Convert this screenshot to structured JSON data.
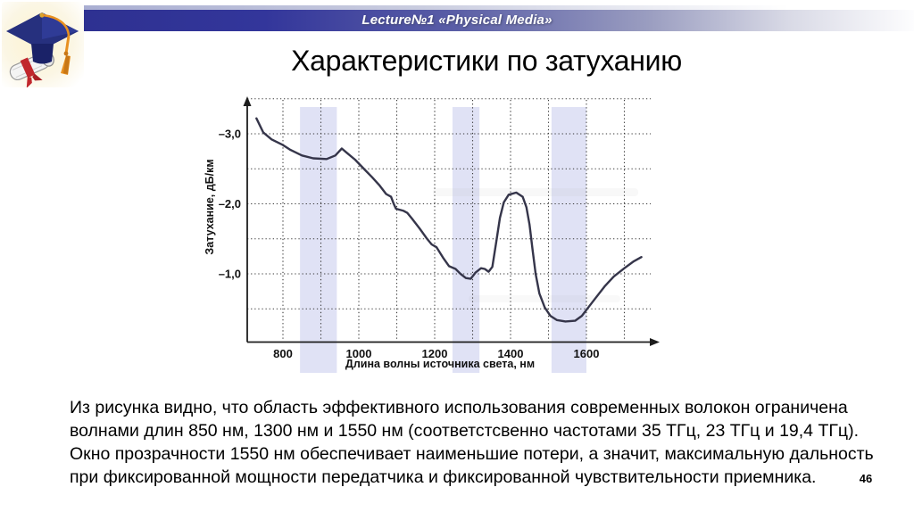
{
  "banner": {
    "title": "Lecture№1 «Physical Media»"
  },
  "slide": {
    "title": "Характеристики по затуханию",
    "page_number": "46"
  },
  "body": {
    "lines": [
      "Из рисунка видно, что область эффективного использования современных волокон ограничена",
      "волнами длин 850 нм, 1300 нм и 1550 нм (соответстсвенно частотами 35 ТГц, 23 ТГц и 19,4 ТГц).",
      "Окно прозрачности 1550 нм обеспечивает наименьшие потери, а значит, максимальную дальность",
      "при фиксированной мощности передатчика и фиксированной чувствительности приемника."
    ]
  },
  "chart_data": {
    "type": "line",
    "title": "",
    "xlabel": "Длина волны источника света, нм",
    "ylabel": "Затухание, дБ/км",
    "xlim": [
      706,
      1790
    ],
    "ylim": [
      -3.6,
      -0.2
    ],
    "grid": "dotted; vertical every 100 nm, horizontal every 0.5 dB; y axis inverted (−3 on top)",
    "legend": "none",
    "x_ticks": [
      {
        "label": "800",
        "value": 800
      },
      {
        "label": "1000",
        "value": 1000
      },
      {
        "label": "1200",
        "value": 1200
      },
      {
        "label": "1400",
        "value": 1400
      },
      {
        "label": "1600",
        "value": 1600
      }
    ],
    "y_ticks": [
      {
        "label": "–3,0",
        "value": -3.0
      },
      {
        "label": "–2,0",
        "value": -2.0
      },
      {
        "label": "–1,0",
        "value": -1.0
      }
    ],
    "x_gridlines": [
      800,
      900,
      1000,
      1100,
      1200,
      1300,
      1400,
      1500,
      1600,
      1700
    ],
    "y_gridlines": [
      -3.5,
      -3.0,
      -2.5,
      -2.0,
      -1.5,
      -1.0,
      -0.5
    ],
    "highlight_bands_nm": [
      [
        845,
        942
      ],
      [
        1247,
        1318
      ],
      [
        1508,
        1600
      ]
    ],
    "band_color": "#cdd0ef",
    "curve_color": "#35354a",
    "series": [
      {
        "name": "attenuation",
        "points": [
          [
            730,
            -3.22
          ],
          [
            748,
            -3.02
          ],
          [
            770,
            -2.92
          ],
          [
            800,
            -2.84
          ],
          [
            820,
            -2.77
          ],
          [
            850,
            -2.69
          ],
          [
            880,
            -2.65
          ],
          [
            915,
            -2.64
          ],
          [
            938,
            -2.69
          ],
          [
            955,
            -2.79
          ],
          [
            968,
            -2.73
          ],
          [
            990,
            -2.63
          ],
          [
            1015,
            -2.49
          ],
          [
            1035,
            -2.38
          ],
          [
            1055,
            -2.26
          ],
          [
            1072,
            -2.14
          ],
          [
            1085,
            -2.1
          ],
          [
            1092,
            -2.0
          ],
          [
            1098,
            -1.93
          ],
          [
            1118,
            -1.9
          ],
          [
            1128,
            -1.87
          ],
          [
            1140,
            -1.79
          ],
          [
            1160,
            -1.65
          ],
          [
            1180,
            -1.5
          ],
          [
            1192,
            -1.42
          ],
          [
            1205,
            -1.38
          ],
          [
            1222,
            -1.23
          ],
          [
            1238,
            -1.11
          ],
          [
            1255,
            -1.07
          ],
          [
            1268,
            -1.0
          ],
          [
            1282,
            -0.94
          ],
          [
            1295,
            -0.93
          ],
          [
            1308,
            -1.02
          ],
          [
            1322,
            -1.08
          ],
          [
            1332,
            -1.07
          ],
          [
            1342,
            -1.03
          ],
          [
            1352,
            -1.1
          ],
          [
            1362,
            -1.45
          ],
          [
            1372,
            -1.8
          ],
          [
            1382,
            -2.02
          ],
          [
            1395,
            -2.13
          ],
          [
            1415,
            -2.16
          ],
          [
            1432,
            -2.1
          ],
          [
            1442,
            -1.95
          ],
          [
            1450,
            -1.7
          ],
          [
            1458,
            -1.35
          ],
          [
            1466,
            -1.0
          ],
          [
            1476,
            -0.72
          ],
          [
            1490,
            -0.52
          ],
          [
            1505,
            -0.4
          ],
          [
            1522,
            -0.34
          ],
          [
            1545,
            -0.32
          ],
          [
            1570,
            -0.33
          ],
          [
            1588,
            -0.4
          ],
          [
            1605,
            -0.52
          ],
          [
            1625,
            -0.66
          ],
          [
            1648,
            -0.82
          ],
          [
            1672,
            -0.96
          ],
          [
            1700,
            -1.08
          ],
          [
            1725,
            -1.18
          ],
          [
            1745,
            -1.24
          ]
        ]
      }
    ]
  },
  "colors": {
    "banner_navy": "#2e3191",
    "banner_fade": "#fdfdfe",
    "band_lavender": "#cdd0ef",
    "text": "#000000"
  }
}
